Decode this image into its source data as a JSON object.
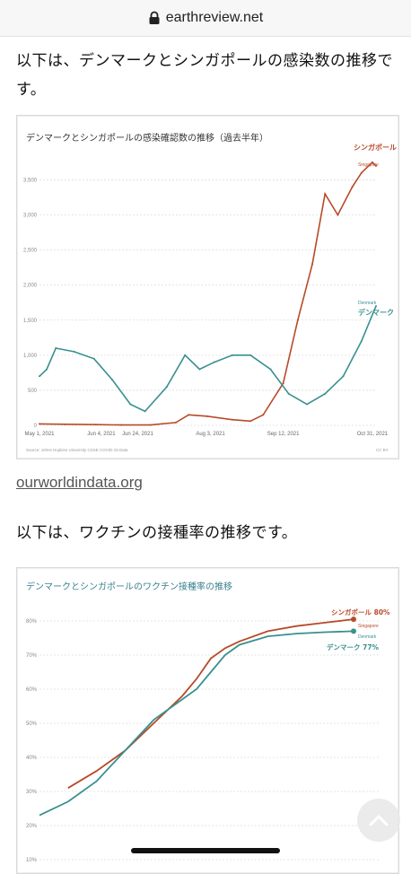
{
  "browser": {
    "url": "earthreview.net"
  },
  "intro_text_1": "以下は、デンマークとシンガポールの感染数の推移です。",
  "source_link": "ourworldindata.org",
  "intro_text_2": "以下は、ワクチンの接種率の推移です。",
  "colors": {
    "singapore": "#b84a2a",
    "denmark": "#3a9090"
  },
  "chart_data": [
    {
      "type": "line",
      "title": "デンマークとシンガポールの感染確認数の推移（過去半年）",
      "x_ticks": [
        "May 1, 2021",
        "Jun 4, 2021",
        "Jun 24, 2021",
        "Aug 3, 2021",
        "Sep 12, 2021",
        "Oct 31, 2021"
      ],
      "y_ticks": [
        "0",
        "500",
        "1,000",
        "1,500",
        "2,000",
        "2,500",
        "3,000",
        "3,500"
      ],
      "ylim": [
        0,
        3800
      ],
      "source": "Source: Johns Hopkins University CSSE COVID-19 Data",
      "license": "CC BY",
      "series": [
        {
          "name": "Singapore",
          "label_jp": "シンガポール",
          "x": [
            "2021-05-01",
            "2021-05-15",
            "2021-06-01",
            "2021-06-15",
            "2021-07-01",
            "2021-07-15",
            "2021-07-22",
            "2021-08-01",
            "2021-08-15",
            "2021-08-25",
            "2021-09-01",
            "2021-09-12",
            "2021-09-20",
            "2021-09-28",
            "2021-10-05",
            "2021-10-12",
            "2021-10-20",
            "2021-10-25",
            "2021-10-31",
            "2021-11-02"
          ],
          "values": [
            20,
            15,
            10,
            5,
            5,
            40,
            150,
            130,
            80,
            60,
            150,
            600,
            1500,
            2300,
            3300,
            3000,
            3400,
            3600,
            3750,
            3700
          ]
        },
        {
          "name": "Denmark",
          "label_jp": "デンマーク",
          "x": [
            "2021-05-01",
            "2021-05-05",
            "2021-05-10",
            "2021-05-20",
            "2021-05-31",
            "2021-06-10",
            "2021-06-20",
            "2021-06-28",
            "2021-07-10",
            "2021-07-20",
            "2021-07-28",
            "2021-08-05",
            "2021-08-15",
            "2021-08-25",
            "2021-09-05",
            "2021-09-15",
            "2021-09-25",
            "2021-10-05",
            "2021-10-15",
            "2021-10-25",
            "2021-11-02"
          ],
          "values": [
            700,
            800,
            1100,
            1050,
            950,
            650,
            300,
            200,
            550,
            1000,
            800,
            900,
            1000,
            1000,
            800,
            450,
            300,
            450,
            700,
            1200,
            1700
          ]
        }
      ]
    },
    {
      "type": "line",
      "title": "デンマークとシンガポールのワクチン接種率の推移",
      "y_ticks": [
        "10%",
        "20%",
        "30%",
        "40%",
        "50%",
        "60%",
        "70%",
        "80%"
      ],
      "ylim": [
        10,
        85
      ],
      "series": [
        {
          "name": "Singapore",
          "label_jp": "シンガポール 80%",
          "x": [
            0,
            10,
            20,
            30,
            40,
            45,
            50,
            55,
            60,
            70,
            80,
            90,
            100
          ],
          "values": [
            31,
            36,
            42,
            50,
            58,
            63,
            69,
            72,
            74,
            77,
            78.5,
            79.5,
            80.5
          ]
        },
        {
          "name": "Denmark",
          "label_jp": "デンマーク 77%",
          "x": [
            -10,
            0,
            10,
            20,
            30,
            40,
            45,
            50,
            55,
            60,
            70,
            80,
            90,
            100
          ],
          "values": [
            23,
            27,
            33,
            42,
            51,
            57,
            60,
            65,
            70,
            73,
            75.5,
            76.3,
            76.7,
            77
          ]
        }
      ]
    }
  ]
}
